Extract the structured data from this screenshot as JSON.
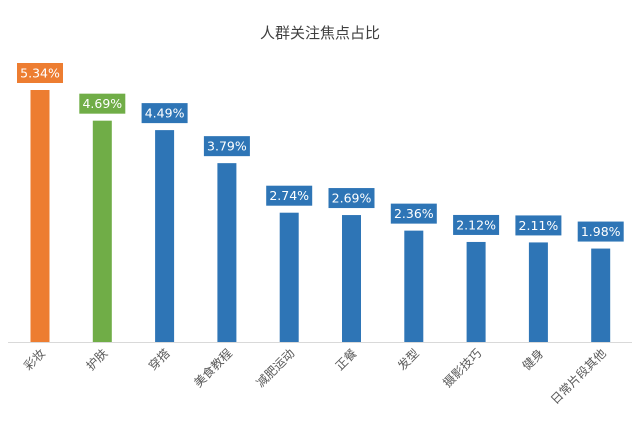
{
  "chart_data": {
    "type": "bar",
    "title": "人群关注焦点占比",
    "xlabel": "",
    "ylabel": "",
    "ylim": [
      0,
      5.34
    ],
    "grid": false,
    "legend": "none",
    "categories": [
      "彩妆",
      "护肤",
      "穿搭",
      "美食教程",
      "减肥运动",
      "正餐",
      "发型",
      "摄影技巧",
      "健身",
      "日常片段其他"
    ],
    "values": [
      5.34,
      4.69,
      4.49,
      3.79,
      2.74,
      2.69,
      2.36,
      2.12,
      2.11,
      1.98
    ],
    "data_labels": [
      "5.34%",
      "4.69%",
      "4.49%",
      "3.79%",
      "2.74%",
      "2.69%",
      "2.36%",
      "2.12%",
      "2.11%",
      "1.98%"
    ],
    "colors": [
      "#ED7D31",
      "#70AD47",
      "#2E75B6",
      "#2E75B6",
      "#2E75B6",
      "#2E75B6",
      "#2E75B6",
      "#2E75B6",
      "#2E75B6",
      "#2E75B6"
    ],
    "axis_color": "#D9D9D9",
    "label_text_color": "#FFFFFF",
    "category_label_color": "#595959"
  }
}
